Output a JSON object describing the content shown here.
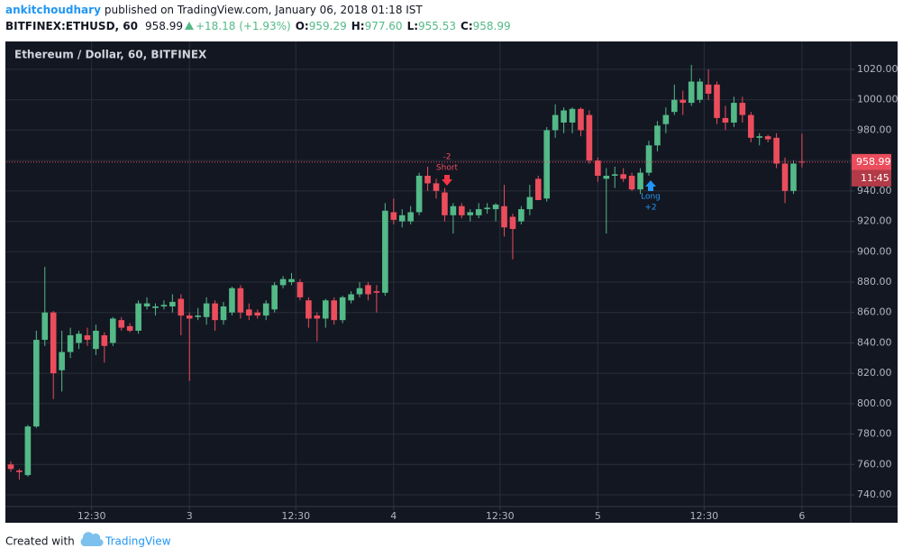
{
  "header": {
    "user": "ankitchoudhary",
    "published": "published on TradingView.com, January 06, 2018 01:18 IST",
    "symbol": "BITFINEX:ETHUSD, 60",
    "price": "958.99",
    "change": "+18.18 (+1.93%)",
    "ohlc": [
      {
        "label": "O:",
        "value": "959.29"
      },
      {
        "label": "H:",
        "value": "977.60"
      },
      {
        "label": "L:",
        "value": "955.53"
      },
      {
        "label": "C:",
        "value": "958.99"
      }
    ]
  },
  "chart_data": {
    "type": "candlestick",
    "title": "Ethereum / Dollar, 60, BITFINEX",
    "categories": [
      null,
      null,
      null,
      null,
      null,
      null,
      null,
      null,
      null,
      null,
      null,
      null,
      null,
      null,
      null,
      null,
      null,
      null,
      null,
      null,
      null,
      null,
      null,
      null,
      null,
      null,
      null,
      null,
      null,
      null,
      null,
      null,
      null,
      null,
      null,
      null,
      null,
      null,
      null,
      null,
      null,
      null,
      null,
      null,
      null,
      null,
      null,
      null,
      null,
      null,
      null,
      null,
      null,
      null,
      null,
      null,
      null,
      null,
      null,
      null,
      null,
      null,
      null,
      null,
      null,
      null,
      null,
      null,
      null,
      null,
      null,
      null,
      null,
      null,
      null,
      null,
      null,
      null,
      null,
      null,
      null,
      null,
      null,
      null,
      null,
      null,
      null,
      null,
      null,
      null,
      null,
      null,
      null,
      null
    ],
    "open": [
      760,
      756,
      753,
      785,
      842,
      860,
      822,
      834,
      840,
      845,
      836,
      845,
      840,
      855,
      851,
      848,
      864,
      863,
      864,
      864,
      869,
      858,
      857,
      857,
      866,
      855,
      860,
      876,
      862,
      860,
      858,
      862,
      878,
      880,
      880,
      868,
      858,
      856,
      868,
      855,
      868,
      872,
      878,
      874,
      873,
      926,
      920,
      920,
      926,
      950,
      945,
      939,
      924,
      930,
      924,
      924,
      928,
      928,
      930,
      923,
      920,
      928,
      948,
      935,
      980,
      985,
      985,
      994,
      990,
      960,
      948,
      950,
      951,
      950,
      941,
      952,
      970,
      984,
      992,
      1000,
      998,
      1000,
      1010,
      1010,
      988,
      985,
      998,
      990,
      975,
      976,
      975,
      958,
      940,
      959.29
    ],
    "high": [
      762,
      757,
      786,
      848,
      890,
      861,
      848,
      850,
      848,
      850,
      852,
      847,
      857,
      857,
      853,
      868,
      870,
      866,
      868,
      872,
      872,
      860,
      863,
      870,
      868,
      867,
      877,
      878,
      866,
      862,
      868,
      880,
      884,
      886,
      882,
      870,
      860,
      869,
      870,
      871,
      874,
      880,
      880,
      878,
      932,
      935,
      928,
      930,
      952,
      956,
      948,
      942,
      932,
      932,
      928,
      932,
      932,
      932,
      944,
      925,
      930,
      944,
      950,
      982,
      997,
      995,
      995,
      995,
      993,
      962,
      955,
      956,
      955,
      952,
      955,
      973,
      986,
      995,
      1010,
      1006,
      1023,
      1014,
      1020,
      1012,
      996,
      1002,
      1002,
      992,
      978,
      977,
      978,
      962,
      960,
      977.6
    ],
    "low": [
      755,
      750,
      752,
      784,
      838,
      803,
      808,
      830,
      836,
      838,
      832,
      827,
      838,
      848,
      847,
      846,
      862,
      858,
      862,
      860,
      845,
      815,
      855,
      852,
      848,
      852,
      858,
      856,
      855,
      856,
      855,
      860,
      876,
      878,
      868,
      850,
      841,
      850,
      852,
      853,
      866,
      870,
      868,
      860,
      871,
      918,
      916,
      918,
      924,
      940,
      935,
      920,
      912,
      922,
      920,
      922,
      925,
      920,
      910,
      895,
      918,
      924,
      934,
      933,
      975,
      978,
      978,
      976,
      958,
      946,
      912,
      942,
      946,
      940,
      938,
      950,
      966,
      978,
      990,
      990,
      996,
      998,
      1000,
      984,
      980,
      982,
      985,
      972,
      970,
      972,
      955,
      932,
      938,
      955.53
    ],
    "close": [
      757,
      755,
      785,
      842,
      860,
      820,
      834,
      845,
      846,
      842,
      848,
      838,
      856,
      850,
      848,
      866,
      866,
      864,
      865,
      867,
      858,
      856,
      858,
      866,
      855,
      864,
      876,
      860,
      858,
      858,
      866,
      878,
      882,
      882,
      870,
      856,
      856,
      868,
      855,
      870,
      872,
      876,
      872,
      873,
      927,
      921,
      924,
      926,
      950,
      945,
      940,
      924,
      930,
      924,
      926,
      928,
      929,
      931,
      916,
      915,
      928,
      936,
      934,
      980,
      990,
      993,
      994,
      980,
      960,
      950,
      950,
      951,
      948,
      941,
      952,
      970,
      983,
      990,
      1000,
      998,
      1012,
      1012,
      1004,
      988,
      985,
      998,
      990,
      975,
      976,
      974,
      958,
      940,
      958,
      958.99
    ],
    "up_color": "#53b987",
    "down_color": "#eb4d5c",
    "ylim": [
      732.3,
      1028.9
    ],
    "yticks": [
      740,
      760,
      780,
      800,
      820,
      840,
      860,
      880,
      900,
      920,
      940,
      960,
      980,
      1000,
      1020
    ],
    "yticks_labels": [
      "740.00",
      "760.00",
      "780.00",
      "800.00",
      "820.00",
      "840.00",
      "860.00",
      "880.00",
      "900.00",
      "920.00",
      "940.00",
      "960.00",
      "980.00",
      "1000.00",
      "1020.00"
    ],
    "xlim": [
      -0.53,
      98.73
    ],
    "xticks": [
      {
        "value": 9.5,
        "label": "12:30"
      },
      {
        "value": 21,
        "label": "3"
      },
      {
        "value": 33.5,
        "label": "12:30"
      },
      {
        "value": 45,
        "label": "4"
      },
      {
        "value": 57.5,
        "label": "12:30"
      },
      {
        "value": 69,
        "label": "5"
      },
      {
        "value": 81.5,
        "label": "12:30"
      },
      {
        "value": 93,
        "label": "6"
      }
    ],
    "grid": true,
    "last_price": 958.99,
    "last_price_label": "958.99",
    "countdown": "11:45",
    "annotations": {
      "short": {
        "qty": "-2",
        "label": "Short"
      },
      "long": {
        "label": "Long",
        "qty": "+2"
      }
    }
  },
  "footer": {
    "created": "Created with",
    "brand": "TradingView"
  }
}
